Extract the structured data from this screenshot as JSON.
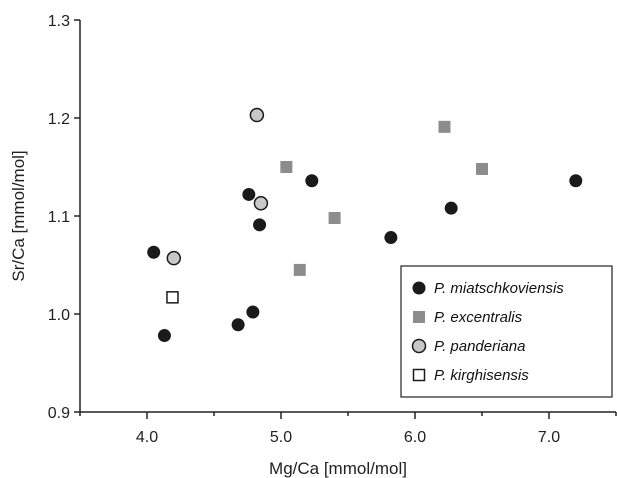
{
  "chart_data": {
    "type": "scatter",
    "title": "",
    "xlabel": "Mg/Ca [mmol/mol]",
    "ylabel": "Sr/Ca [mmol/mol]",
    "xlim": [
      3.5,
      7.5
    ],
    "ylim": [
      0.9,
      1.3
    ],
    "xticks": [
      4.0,
      5.0,
      6.0,
      7.0
    ],
    "yticks": [
      0.9,
      1.0,
      1.1,
      1.2,
      1.3
    ],
    "xtick_labels": [
      "4.0",
      "5.0",
      "6.0",
      "7.0"
    ],
    "ytick_labels": [
      "0.9",
      "1.0",
      "1.1",
      "1.2",
      "1.3"
    ],
    "grid": false,
    "legend_position": "bottom-right",
    "series": [
      {
        "name": "P. miatschkoviensis",
        "marker": "filled-circle",
        "color": "#1a1a1a",
        "x": [
          4.05,
          4.13,
          4.68,
          4.76,
          4.79,
          4.84,
          5.23,
          5.82,
          6.27,
          7.2
        ],
        "y": [
          1.063,
          0.978,
          0.989,
          1.122,
          1.002,
          1.091,
          1.136,
          1.078,
          1.108,
          1.136
        ]
      },
      {
        "name": "P. excentralis",
        "marker": "gray-square",
        "color": "#8c8c8c",
        "x": [
          5.04,
          5.14,
          5.4,
          6.22,
          6.5
        ],
        "y": [
          1.15,
          1.045,
          1.098,
          1.191,
          1.148
        ]
      },
      {
        "name": "P. panderiana",
        "marker": "gray-circle",
        "color": "#c8c8c8",
        "x": [
          4.2,
          4.82,
          4.85
        ],
        "y": [
          1.057,
          1.203,
          1.113
        ]
      },
      {
        "name": "P. kirghisensis",
        "marker": "open-square",
        "color": "#ffffff",
        "x": [
          4.19
        ],
        "y": [
          1.017
        ]
      }
    ]
  }
}
